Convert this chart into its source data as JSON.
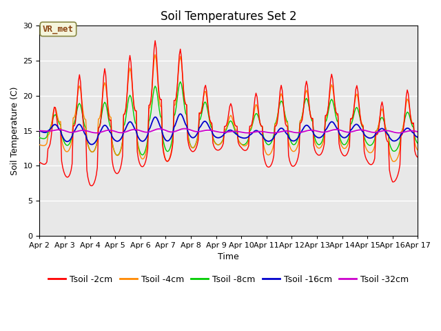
{
  "title": "Soil Temperatures Set 2",
  "xlabel": "Time",
  "ylabel": "Soil Temperature (C)",
  "ylim": [
    0,
    30
  ],
  "xlim": [
    0,
    360
  ],
  "background_color": "#e8e8e8",
  "annotation_text": "VR_met",
  "annotation_color": "#8B4513",
  "annotation_bg": "#f5f5dc",
  "series_colors": {
    "Tsoil -2cm": "#ff0000",
    "Tsoil -4cm": "#ff8800",
    "Tsoil -8cm": "#00cc00",
    "Tsoil -16cm": "#0000cc",
    "Tsoil -32cm": "#cc00cc"
  },
  "x_tick_labels": [
    "Apr 2",
    "Apr 3",
    "Apr 4",
    "Apr 5",
    "Apr 6",
    "Apr 7",
    "Apr 8",
    "Apr 9",
    "Apr 10",
    "Apr 11",
    "Apr 12",
    "Apr 13",
    "Apr 14",
    "Apr 15",
    "Apr 16",
    "Apr 17"
  ],
  "x_tick_positions": [
    0,
    24,
    48,
    72,
    96,
    120,
    144,
    168,
    192,
    216,
    240,
    264,
    288,
    312,
    336,
    360
  ],
  "y_ticks": [
    0,
    5,
    10,
    15,
    20,
    25,
    30
  ],
  "title_fontsize": 12,
  "axis_fontsize": 9,
  "tick_fontsize": 8,
  "legend_fontsize": 9,
  "peak_hour": 14,
  "trough_hour": 6,
  "peak_2cm": [
    10.5,
    24.0,
    22.3,
    25.0,
    26.3,
    29.0,
    25.0,
    19.0,
    18.8,
    21.5,
    21.5,
    22.5,
    23.5,
    20.0,
    18.5,
    22.5,
    10.5
  ],
  "trough_2cm": [
    10.5,
    8.5,
    7.0,
    8.8,
    9.8,
    10.5,
    12.0,
    12.2,
    12.5,
    9.8,
    9.8,
    11.5,
    11.5,
    10.5,
    7.5,
    11.0,
    10.5
  ],
  "peak_4cm": [
    13.0,
    22.0,
    21.0,
    22.5,
    25.0,
    26.5,
    25.0,
    17.5,
    17.0,
    20.0,
    20.5,
    21.0,
    22.0,
    19.0,
    17.5,
    21.0,
    12.0
  ],
  "trough_4cm": [
    13.0,
    12.0,
    12.0,
    11.5,
    11.0,
    10.5,
    12.5,
    13.0,
    13.0,
    11.5,
    12.0,
    12.5,
    12.5,
    12.0,
    10.5,
    12.0,
    12.0
  ],
  "peak_8cm": [
    14.0,
    19.5,
    18.5,
    19.5,
    20.5,
    22.0,
    22.0,
    17.0,
    16.0,
    18.5,
    19.8,
    19.5,
    19.5,
    17.5,
    16.5,
    18.5,
    13.5
  ],
  "trough_8cm": [
    14.0,
    13.0,
    12.0,
    11.5,
    11.5,
    12.0,
    12.5,
    13.0,
    13.0,
    13.0,
    13.0,
    13.0,
    13.0,
    13.0,
    12.0,
    13.0,
    13.0
  ],
  "peak_16cm": [
    15.0,
    16.5,
    15.5,
    16.0,
    16.5,
    17.3,
    17.5,
    15.5,
    14.8,
    15.2,
    15.5,
    16.0,
    16.5,
    15.5,
    15.2,
    15.5,
    15.0
  ],
  "trough_16cm": [
    15.0,
    13.5,
    13.0,
    13.5,
    13.5,
    13.5,
    14.0,
    14.0,
    14.0,
    13.5,
    13.5,
    14.0,
    14.0,
    14.0,
    13.5,
    14.0,
    14.5
  ],
  "peak_32cm": [
    15.0,
    15.2,
    15.0,
    15.1,
    15.2,
    15.3,
    15.3,
    15.0,
    14.9,
    14.9,
    15.0,
    15.1,
    15.2,
    15.1,
    15.0,
    15.0,
    14.8
  ],
  "trough_32cm": [
    15.0,
    14.8,
    14.7,
    14.7,
    14.8,
    14.8,
    14.9,
    14.8,
    14.7,
    14.7,
    14.7,
    14.8,
    14.8,
    14.8,
    14.7,
    14.7,
    14.7
  ]
}
